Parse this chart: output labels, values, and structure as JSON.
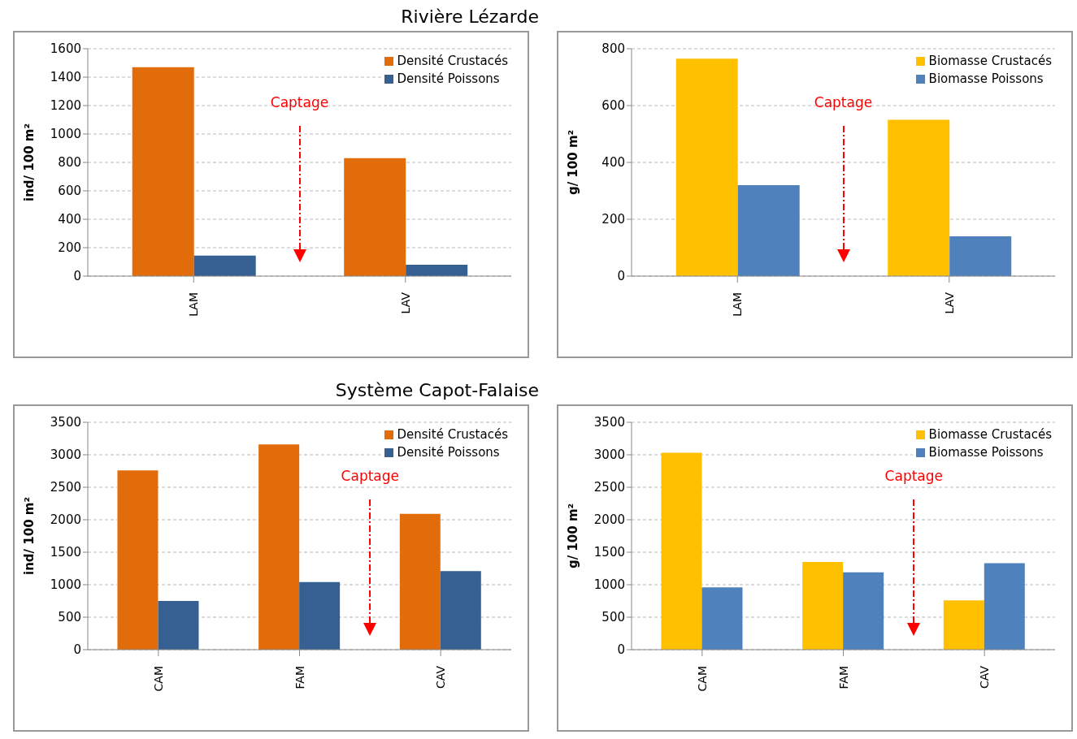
{
  "chart_data": [
    {
      "type": "bar",
      "title": "Rivière Lézarde",
      "ylabel": "ind/ 100 m²",
      "categories": [
        "LAM",
        "LAV"
      ],
      "series": [
        {
          "name": "Densité Crustacés",
          "color": "#e36c0a",
          "values": [
            1470,
            830
          ]
        },
        {
          "name": "Densité Poissons",
          "color": "#366092",
          "values": [
            145,
            80
          ]
        }
      ],
      "ylim": [
        0,
        1600
      ],
      "yticks": [
        0,
        200,
        400,
        600,
        800,
        1000,
        1200,
        1400,
        1600
      ],
      "grid": "y",
      "legend": "top right",
      "annotations": [
        "Captage"
      ]
    },
    {
      "type": "bar",
      "ylabel": "g/ 100 m²",
      "categories": [
        "LAM",
        "LAV"
      ],
      "series": [
        {
          "name": "Biomasse Crustacés",
          "color": "#ffc000",
          "values": [
            765,
            550
          ]
        },
        {
          "name": "Biomasse Poissons",
          "color": "#4f81bd",
          "values": [
            320,
            140
          ]
        }
      ],
      "ylim": [
        0,
        800
      ],
      "yticks": [
        0,
        200,
        400,
        600,
        800
      ],
      "grid": "y",
      "legend": "top right",
      "annotations": [
        "Captage"
      ]
    },
    {
      "type": "bar",
      "title": "Système Capot-Falaise",
      "ylabel": "ind/ 100 m²",
      "categories": [
        "CAM",
        "FAM",
        "CAV"
      ],
      "series": [
        {
          "name": "Densité Crustacés",
          "color": "#e36c0a",
          "values": [
            2760,
            3160,
            2090
          ]
        },
        {
          "name": "Densité Poissons",
          "color": "#366092",
          "values": [
            750,
            1040,
            1210
          ]
        }
      ],
      "ylim": [
        0,
        3500
      ],
      "yticks": [
        0,
        500,
        1000,
        1500,
        2000,
        2500,
        3000,
        3500
      ],
      "grid": "y",
      "legend": "top right",
      "annotations": [
        "Captage"
      ]
    },
    {
      "type": "bar",
      "ylabel": "g/ 100 m²",
      "categories": [
        "CAM",
        "FAM",
        "CAV"
      ],
      "series": [
        {
          "name": "Biomasse Crustacés",
          "color": "#ffc000",
          "values": [
            3030,
            1350,
            760
          ]
        },
        {
          "name": "Biomasse Poissons",
          "color": "#4f81bd",
          "values": [
            960,
            1190,
            1330
          ]
        }
      ],
      "ylim": [
        0,
        3500
      ],
      "yticks": [
        0,
        500,
        1000,
        1500,
        2000,
        2500,
        3000,
        3500
      ],
      "grid": "y",
      "legend": "top right",
      "annotations": [
        "Captage"
      ]
    }
  ]
}
